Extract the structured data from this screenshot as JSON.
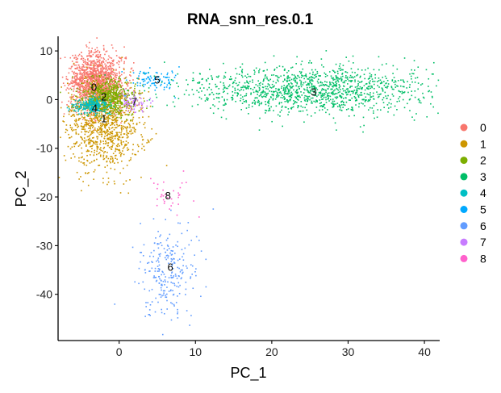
{
  "chart_data": {
    "type": "scatter",
    "title": "RNA_snn_res.0.1",
    "xlabel": "PC_1",
    "ylabel": "PC_2",
    "xlim": [
      -8,
      42
    ],
    "ylim": [
      -49.5,
      13
    ],
    "x_ticks": [
      "0",
      "10",
      "20",
      "30",
      "40"
    ],
    "x_tick_values": [
      0,
      10,
      20,
      30,
      40
    ],
    "y_ticks": [
      "10",
      "0",
      "-10",
      "-20",
      "-30",
      "-40"
    ],
    "y_tick_values": [
      10,
      0,
      -10,
      -20,
      -30,
      -40
    ],
    "grid": false,
    "legend_position": "right",
    "series": [
      {
        "name": "0",
        "color": "#F8766D",
        "center": [
          -3,
          3.5
        ],
        "spread": [
          1.8,
          3
        ],
        "n": 1400,
        "label": "0",
        "label_at": [
          -3.3,
          2.5
        ]
      },
      {
        "name": "1",
        "color": "#CD9600",
        "center": [
          -2,
          -5
        ],
        "spread": [
          2.5,
          4.5
        ],
        "n": 1000,
        "label": "1",
        "label_at": [
          -2,
          -4
        ]
      },
      {
        "name": "2",
        "color": "#7CAE00",
        "center": [
          -1.5,
          0.5
        ],
        "spread": [
          1.8,
          1.8
        ],
        "n": 550,
        "label": "2",
        "label_at": [
          -2,
          0.5
        ]
      },
      {
        "name": "3",
        "color": "#00BE67",
        "center": [
          25,
          2
        ],
        "spread": [
          8,
          2.5
        ],
        "n": 1300,
        "label": "3",
        "label_at": [
          25.5,
          1.5
        ]
      },
      {
        "name": "4",
        "color": "#00BFC4",
        "center": [
          -3.5,
          -1.2
        ],
        "spread": [
          1.2,
          0.8
        ],
        "n": 250,
        "label": "4",
        "label_at": [
          -3.2,
          -1.8
        ]
      },
      {
        "name": "5",
        "color": "#00A9FF",
        "center": [
          5,
          4
        ],
        "spread": [
          1.5,
          1.3
        ],
        "n": 90,
        "label": "5",
        "label_at": [
          5,
          4
        ]
      },
      {
        "name": "6",
        "color": "#619CFF",
        "center": [
          6.5,
          -35
        ],
        "spread": [
          2,
          5
        ],
        "n": 250,
        "label": "6",
        "label_at": [
          6.7,
          -34.5
        ]
      },
      {
        "name": "7",
        "color": "#C77CFF",
        "center": [
          2,
          -0.5
        ],
        "spread": [
          1,
          1
        ],
        "n": 70,
        "label": "7",
        "label_at": [
          2,
          -0.5
        ]
      },
      {
        "name": "8",
        "color": "#FF61CC",
        "center": [
          6.5,
          -20
        ],
        "spread": [
          1.6,
          2
        ],
        "n": 35,
        "label": "8",
        "label_at": [
          6.4,
          -19.8
        ]
      }
    ]
  }
}
